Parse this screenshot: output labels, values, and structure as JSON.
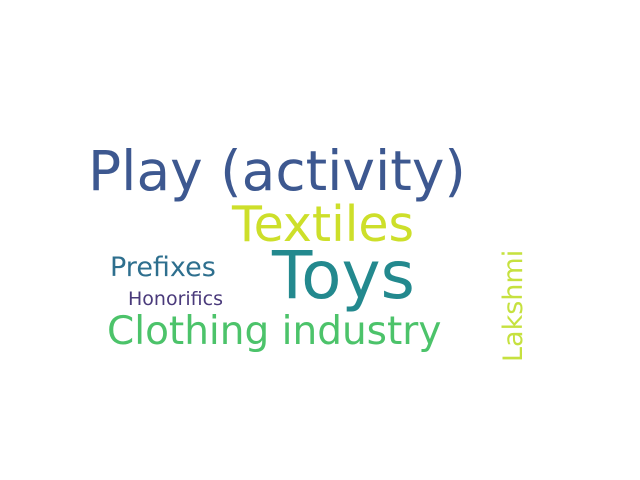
{
  "words": [
    {
      "text": "Play (activity)",
      "color": "#3d5890"
    },
    {
      "text": "Textiles",
      "color": "#cddf2a"
    },
    {
      "text": "Prefixes",
      "color": "#2e6f8e"
    },
    {
      "text": "Toys",
      "color": "#23898e"
    },
    {
      "text": "Honorifics",
      "color": "#4a3a7b"
    },
    {
      "text": "Clothing industry",
      "color": "#4cc36a"
    },
    {
      "text": "Lakshmi",
      "color": "#c6e13f"
    }
  ]
}
